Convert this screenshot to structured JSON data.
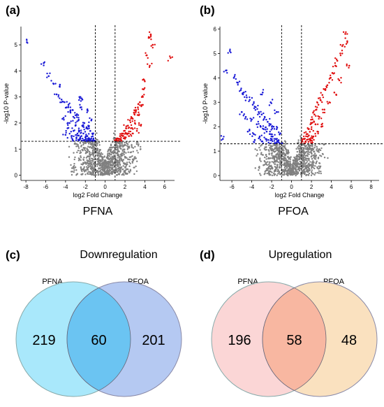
{
  "panels": {
    "a": {
      "label": "(a)",
      "caption": "PFNA"
    },
    "b": {
      "label": "(b)",
      "caption": "PFOA"
    },
    "c": {
      "label": "(c)",
      "title": "Downregulation"
    },
    "d": {
      "label": "(d)",
      "title": "Upregulation"
    }
  },
  "colors": {
    "down": "#1a1ad6",
    "up": "#e01010",
    "ns": "#808080",
    "venn_down_left": "#a9e8fb",
    "venn_down_right": "#b5c9f2",
    "venn_down_overlap": "#6bc4f2",
    "venn_up_left": "#fbd6d6",
    "venn_up_right": "#fae1bf",
    "venn_up_overlap": "#f8b7a1"
  },
  "chart_data": [
    {
      "type": "scatter",
      "title": "",
      "panel_caption": "PFNA",
      "xlabel": "log2 Fold Change",
      "ylabel": "-log10 P-value",
      "xlim": [
        -8.5,
        7
      ],
      "ylim": [
        -0.2,
        5.7
      ],
      "xticks": [
        -8,
        -6,
        -4,
        -2,
        0,
        2,
        4,
        6
      ],
      "yticks": [
        0,
        1,
        2,
        3,
        4,
        5
      ],
      "fc_threshold": [
        -1,
        1
      ],
      "p_threshold": 1.3,
      "series": [
        {
          "group": "down",
          "x": [
            -7.9,
            -6.2,
            -5.7,
            -5.2,
            -4.9,
            -4.6,
            -4.4,
            -4.1,
            -3.9,
            -3.7,
            -3.5,
            -3.3,
            -3.1,
            -2.9,
            -2.7,
            -2.5,
            -2.3,
            -2.1,
            -1.9,
            -1.7,
            -1.5,
            -1.3,
            -4.2,
            -3.6,
            -3.0,
            -2.6,
            -2.2,
            -1.8,
            -1.4,
            -3.8,
            -3.2,
            -2.8,
            -2.4,
            -2.0,
            -1.6,
            -1.2,
            -3.4,
            -2.9,
            -2.5,
            -2.1,
            -1.7,
            -1.3,
            -4.0,
            -3.3,
            -2.7,
            -2.2,
            -1.9,
            -1.5,
            -1.1,
            -2.6,
            -2.3,
            -1.8,
            -1.4
          ],
          "y": [
            5.1,
            4.3,
            3.8,
            3.5,
            3.1,
            3.4,
            2.9,
            2.8,
            2.6,
            2.7,
            2.4,
            2.5,
            2.2,
            2.3,
            2.1,
            2.6,
            1.9,
            2.0,
            1.8,
            1.9,
            1.7,
            1.6,
            2.2,
            2.0,
            1.9,
            1.7,
            1.6,
            1.5,
            1.4,
            1.8,
            1.7,
            1.6,
            1.5,
            1.45,
            1.4,
            1.35,
            1.5,
            1.45,
            1.4,
            1.35,
            1.32,
            1.31,
            1.55,
            1.38,
            1.36,
            1.33,
            1.31,
            1.34,
            1.32,
            3.0,
            2.9,
            2.5,
            2.1
          ]
        },
        {
          "group": "up",
          "x": [
            4.6,
            4.4,
            6.6,
            4.8,
            4.2,
            4.5,
            4.0,
            3.9,
            3.7,
            3.5,
            3.3,
            3.1,
            2.9,
            2.7,
            2.5,
            2.3,
            2.1,
            1.9,
            1.7,
            1.5,
            1.3,
            1.1,
            3.8,
            3.4,
            3.0,
            2.6,
            2.2,
            1.8,
            1.4,
            3.6,
            3.2,
            2.8,
            2.4,
            2.0,
            1.6,
            1.2
          ],
          "y": [
            5.4,
            5.3,
            4.5,
            5.0,
            4.6,
            4.2,
            3.6,
            3.3,
            3.0,
            2.8,
            2.6,
            2.5,
            2.4,
            2.2,
            2.1,
            1.9,
            1.8,
            1.7,
            1.6,
            1.5,
            1.4,
            1.35,
            2.7,
            2.3,
            2.0,
            1.8,
            1.6,
            1.5,
            1.4,
            1.9,
            1.7,
            1.6,
            1.5,
            1.4,
            1.35,
            1.32
          ]
        }
      ]
    },
    {
      "type": "scatter",
      "title": "",
      "panel_caption": "PFOA",
      "xlabel": "log2 Fold Change",
      "ylabel": "-log10 P-value",
      "xlim": [
        -7.2,
        8.8
      ],
      "ylim": [
        -0.2,
        6.1
      ],
      "xticks": [
        -6,
        -4,
        -2,
        0,
        2,
        4,
        6,
        8
      ],
      "yticks": [
        0,
        1,
        2,
        3,
        4,
        5,
        6
      ],
      "fc_threshold": [
        -1,
        1
      ],
      "p_threshold": 1.3,
      "series": [
        {
          "group": "down",
          "x": [
            -6.2,
            -6.6,
            -5.8,
            -5.4,
            -5.1,
            -4.8,
            -4.5,
            -4.2,
            -3.9,
            -3.6,
            -3.3,
            -3.0,
            -2.7,
            -2.4,
            -2.1,
            -1.8,
            -1.5,
            -1.2,
            -5.0,
            -4.6,
            -4.0,
            -3.5,
            -3.1,
            -2.8,
            -2.5,
            -2.2,
            -1.9,
            -1.6,
            -1.3,
            -4.4,
            -3.8,
            -3.2,
            -2.6,
            -2.0,
            -1.4,
            -3.7,
            -3.0,
            -2.3,
            -1.7,
            -1.2,
            -2.9,
            -2.1,
            -1.5,
            -6.9
          ],
          "y": [
            5.1,
            4.3,
            4.0,
            3.8,
            3.5,
            3.4,
            3.2,
            3.1,
            2.9,
            2.8,
            2.6,
            2.5,
            2.4,
            2.2,
            2.1,
            2.0,
            1.9,
            1.7,
            2.6,
            2.4,
            2.3,
            2.1,
            2.0,
            1.9,
            1.8,
            1.7,
            1.6,
            1.5,
            1.45,
            1.8,
            1.7,
            1.6,
            1.5,
            1.45,
            1.4,
            1.45,
            1.4,
            1.35,
            1.33,
            1.32,
            3.4,
            3.0,
            2.6,
            1.5
          ]
        },
        {
          "group": "up",
          "x": [
            5.4,
            5.6,
            5.1,
            4.9,
            4.6,
            4.4,
            4.1,
            3.9,
            3.6,
            3.4,
            3.1,
            2.9,
            2.7,
            2.5,
            2.3,
            2.1,
            1.9,
            1.7,
            1.5,
            1.3,
            1.1,
            4.8,
            4.3,
            3.8,
            3.3,
            2.8,
            2.4,
            2.0,
            1.6,
            1.2,
            3.0,
            2.6,
            2.2,
            1.8,
            1.4,
            5.8,
            1.9,
            2.1,
            1.7
          ],
          "y": [
            5.8,
            5.5,
            5.3,
            5.0,
            4.7,
            4.5,
            4.2,
            4.0,
            3.7,
            3.5,
            3.3,
            3.1,
            2.9,
            2.7,
            2.5,
            2.3,
            2.1,
            1.9,
            1.7,
            1.5,
            1.4,
            3.9,
            3.4,
            3.0,
            2.7,
            2.4,
            2.1,
            1.9,
            1.7,
            1.5,
            2.0,
            1.8,
            1.6,
            1.5,
            1.4,
            4.5,
            1.45,
            1.35,
            1.38
          ]
        }
      ]
    },
    {
      "type": "venn",
      "panel_title": "Downregulation",
      "sets": [
        "PFNA",
        "PFOA"
      ],
      "left_only": 219,
      "overlap": 60,
      "right_only": 201
    },
    {
      "type": "venn",
      "panel_title": "Upregulation",
      "sets": [
        "PFNA",
        "PFOA"
      ],
      "left_only": 196,
      "overlap": 58,
      "right_only": 48
    }
  ]
}
